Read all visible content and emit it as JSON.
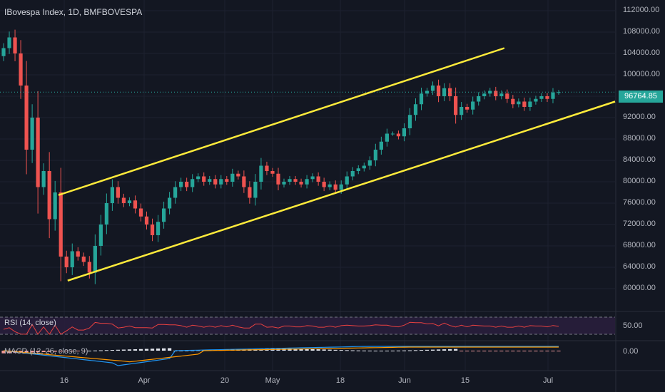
{
  "header": {
    "title": "IBovespa Index, 1D, BMFBOVESPA"
  },
  "colors": {
    "background": "#131722",
    "up": "#26a69a",
    "down": "#ef5350",
    "channel": "#ffeb3b",
    "rsi_line": "#e84040",
    "rsi_band": "#2a1f3d"
  },
  "chart_data": {
    "type": "candlestick",
    "title": "IBovespa Index, 1D, BMFBOVESPA",
    "y_axis": {
      "ylim": [
        56000,
        114000
      ],
      "ticks": [
        60000,
        64000,
        68000,
        72000,
        76000,
        80000,
        84000,
        88000,
        92000,
        96000,
        100000,
        104000,
        108000,
        112000
      ],
      "tick_labels": [
        "60000.00",
        "64000.00",
        "68000.00",
        "72000.00",
        "76000.00",
        "80000.00",
        "84000.00",
        "88000.00",
        "92000.00",
        "96000.00",
        "100000.00",
        "104000.00",
        "108000.00",
        "112000.00"
      ]
    },
    "x_axis": {
      "tick_labels": [
        "16",
        "Apr",
        "20",
        "May",
        "18",
        "Jun",
        "15",
        "Jul"
      ]
    },
    "last_price": "96764.85",
    "closes": [
      105000,
      107000,
      104000,
      98000,
      86000,
      92000,
      79000,
      82000,
      73000,
      78000,
      66000,
      64000,
      67000,
      66000,
      65000,
      63000,
      68000,
      72000,
      76000,
      79000,
      77000,
      76000,
      76500,
      75000,
      73500,
      72000,
      70000,
      72500,
      75000,
      77000,
      79000,
      80000,
      79000,
      80500,
      81000,
      80000,
      80500,
      79500,
      80500,
      80000,
      81500,
      81000,
      79000,
      77000,
      80000,
      83000,
      82000,
      81500,
      79500,
      80000,
      80500,
      80000,
      79500,
      80500,
      81000,
      80000,
      79000,
      79500,
      78500,
      79500,
      81000,
      82000,
      82500,
      83000,
      84000,
      86000,
      87500,
      89000,
      89000,
      88500,
      90000,
      92500,
      94500,
      96500,
      97000,
      98000,
      96000,
      97500,
      96000,
      92500,
      94000,
      93500,
      95000,
      96000,
      96500,
      97000,
      96000,
      96500,
      95500,
      94500,
      95000,
      94000,
      95000,
      95500,
      96000,
      95500,
      96700,
      96764.85
    ],
    "channel": {
      "upper": [
        [
          0.095,
          77500
        ],
        [
          0.82,
          105000
        ]
      ],
      "lower": [
        [
          0.11,
          61500
        ],
        [
          1.0,
          95000
        ]
      ]
    },
    "indicators": [
      {
        "name": "RSI (14, close)",
        "level_label": "50.00",
        "band": [
          30,
          70
        ]
      },
      {
        "name": "MACD (12, 26, close, 9)",
        "level_label": "0.00"
      }
    ]
  }
}
